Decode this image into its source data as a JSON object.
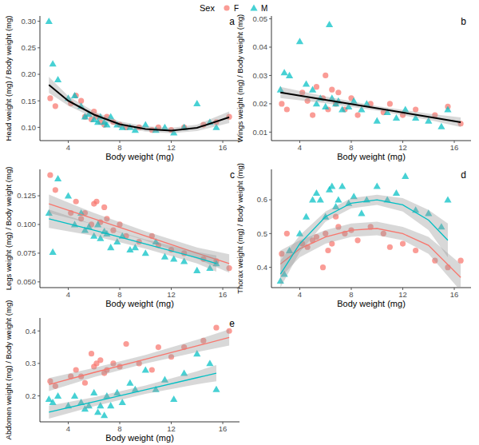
{
  "chart_data": [
    {
      "type": "scatter",
      "title": "a",
      "x_label": "Body weight (mg)",
      "y_label": "Head weight (mg) / Body weight (mg)",
      "legend": "top",
      "legend_title": "Sex",
      "xlim": [
        1.8,
        17.3
      ],
      "xticks": [
        4,
        8,
        12,
        16
      ],
      "ylim": [
        0.075,
        0.31
      ],
      "yticks": [
        {
          "value": 0.1,
          "label": "0.10"
        },
        {
          "value": 0.15,
          "label": "0.15"
        },
        {
          "value": 0.2,
          "label": "0.20"
        },
        {
          "value": 0.25,
          "label": "0.25"
        },
        {
          "value": 0.3,
          "label": "0.30"
        }
      ],
      "series": [
        {
          "name": "F",
          "color": "#F8766D",
          "marker": "circle",
          "x": [
            2.6,
            3.0,
            4.2,
            4.6,
            5.0,
            5.3,
            5.8,
            6.0,
            6.2,
            6.5,
            6.8,
            7.0,
            7.5,
            8.0,
            8.5,
            9.5,
            10.5,
            11.0,
            12.0,
            13.0,
            14.5,
            15.5,
            16.5
          ],
          "values": [
            0.155,
            0.14,
            0.145,
            0.16,
            0.15,
            0.12,
            0.115,
            0.13,
            0.12,
            0.11,
            0.105,
            0.12,
            0.11,
            0.105,
            0.1,
            0.1,
            0.095,
            0.1,
            0.095,
            0.1,
            0.105,
            0.11,
            0.12
          ]
        },
        {
          "name": "M",
          "color": "#00BFC4",
          "marker": "triangle",
          "x": [
            2.5,
            2.8,
            3.2,
            4.0,
            4.5,
            5.0,
            5.3,
            5.6,
            6.0,
            6.3,
            6.5,
            6.8,
            7.0,
            7.3,
            7.8,
            8.2,
            8.8,
            9.2,
            10.0,
            10.8,
            11.5,
            12.2,
            13.0,
            14.0,
            15.0,
            15.5
          ],
          "values": [
            0.3,
            0.22,
            0.19,
            0.155,
            0.16,
            0.14,
            0.12,
            0.125,
            0.115,
            0.11,
            0.12,
            0.11,
            0.105,
            0.12,
            0.105,
            0.1,
            0.1,
            0.095,
            0.105,
            0.095,
            0.1,
            0.09,
            0.1,
            0.145,
            0.11,
            0.1
          ]
        },
        {
          "type": "line",
          "color": "#000000",
          "line_style": "solid",
          "x": [
            2.5,
            4,
            6,
            8,
            10,
            12,
            14,
            16.5
          ],
          "values": [
            0.18,
            0.15,
            0.124,
            0.106,
            0.097,
            0.094,
            0.099,
            0.119
          ],
          "lower": [
            0.165,
            0.141,
            0.118,
            0.101,
            0.092,
            0.089,
            0.093,
            0.108
          ],
          "upper": [
            0.195,
            0.159,
            0.13,
            0.111,
            0.102,
            0.099,
            0.105,
            0.13
          ]
        }
      ]
    },
    {
      "type": "scatter",
      "title": "b",
      "x_label": "Body weight (mg)",
      "y_label": "Wings weight (mg) / Body weight (mg)",
      "xlim": [
        1.8,
        17.3
      ],
      "xticks": [
        4,
        8,
        12,
        16
      ],
      "ylim": [
        0.007,
        0.051
      ],
      "yticks": [
        0.01,
        0.02,
        0.03,
        0.04,
        0.05
      ],
      "series": [
        {
          "name": "F",
          "color": "#F8766D",
          "marker": "circle",
          "x": [
            2.6,
            3.0,
            4.2,
            4.6,
            5.0,
            5.3,
            5.8,
            6.0,
            6.2,
            6.5,
            6.8,
            7.0,
            7.5,
            8.0,
            8.5,
            9.5,
            10.5,
            11.0,
            12.0,
            13.0,
            14.5,
            15.5,
            16.5
          ],
          "values": [
            0.02,
            0.018,
            0.024,
            0.021,
            0.016,
            0.026,
            0.022,
            0.03,
            0.018,
            0.025,
            0.02,
            0.024,
            0.018,
            0.022,
            0.016,
            0.02,
            0.017,
            0.02,
            0.016,
            0.018,
            0.016,
            0.019,
            0.013
          ]
        },
        {
          "name": "M",
          "color": "#00BFC4",
          "marker": "triangle",
          "x": [
            2.5,
            2.8,
            3.2,
            4.0,
            4.5,
            5.0,
            5.3,
            5.6,
            6.0,
            6.3,
            6.5,
            6.8,
            7.0,
            7.3,
            7.8,
            8.2,
            8.8,
            9.2,
            10.0,
            10.8,
            11.5,
            12.2,
            13.0,
            14.0,
            15.0,
            15.5
          ],
          "values": [
            0.025,
            0.031,
            0.03,
            0.042,
            0.027,
            0.025,
            0.02,
            0.022,
            0.019,
            0.048,
            0.022,
            0.02,
            0.021,
            0.018,
            0.019,
            0.021,
            0.018,
            0.02,
            0.014,
            0.017,
            0.015,
            0.018,
            0.015,
            0.014,
            0.012,
            0.018
          ]
        },
        {
          "type": "line",
          "color": "#000000",
          "line_style": "solid",
          "x": [
            2.5,
            6,
            10,
            14,
            16.5
          ],
          "values": [
            0.024,
            0.0214,
            0.0184,
            0.0154,
            0.0135
          ],
          "lower": [
            0.022,
            0.0202,
            0.0176,
            0.0143,
            0.0118
          ],
          "upper": [
            0.026,
            0.0226,
            0.0192,
            0.0165,
            0.0152
          ]
        }
      ]
    },
    {
      "type": "scatter",
      "title": "c",
      "x_label": "Body weight (mg)",
      "y_label": "Legs weight (mg) / Body weight (mg)",
      "xlim": [
        1.8,
        17.3
      ],
      "xticks": [
        4,
        8,
        12,
        16
      ],
      "ylim": [
        0.045,
        0.148
      ],
      "yticks": [
        {
          "value": 0.05,
          "label": "0.050"
        },
        {
          "value": 0.075,
          "label": "0.075"
        },
        {
          "value": 0.1,
          "label": "0.100"
        },
        {
          "value": 0.125,
          "label": "0.125"
        }
      ],
      "series": [
        {
          "name": "F",
          "color": "#F8766D",
          "marker": "circle",
          "x": [
            2.6,
            3.0,
            4.2,
            4.6,
            5.0,
            5.3,
            5.8,
            6.0,
            6.2,
            6.5,
            6.8,
            7.0,
            7.5,
            8.0,
            8.5,
            9.5,
            10.5,
            11.0,
            12.0,
            13.0,
            14.5,
            15.5,
            16.5
          ],
          "values": [
            0.143,
            0.13,
            0.11,
            0.12,
            0.105,
            0.11,
            0.1,
            0.118,
            0.12,
            0.102,
            0.115,
            0.105,
            0.095,
            0.1,
            0.09,
            0.085,
            0.09,
            0.082,
            0.078,
            0.075,
            0.07,
            0.068,
            0.062
          ]
        },
        {
          "name": "M",
          "color": "#00BFC4",
          "marker": "triangle",
          "x": [
            2.5,
            2.8,
            3.2,
            4.0,
            4.5,
            5.0,
            5.3,
            5.6,
            6.0,
            6.3,
            6.5,
            6.8,
            7.0,
            7.3,
            7.8,
            8.2,
            8.8,
            9.2,
            10.0,
            10.8,
            11.5,
            12.2,
            13.0,
            14.0,
            15.0,
            15.5
          ],
          "values": [
            0.11,
            0.076,
            0.14,
            0.125,
            0.1,
            0.11,
            0.095,
            0.098,
            0.09,
            0.1,
            0.088,
            0.094,
            0.092,
            0.08,
            0.085,
            0.09,
            0.078,
            0.08,
            0.075,
            0.085,
            0.072,
            0.07,
            0.068,
            0.06,
            0.062,
            0.066
          ]
        },
        {
          "type": "line",
          "color": "#F8766D",
          "line_style": "solid",
          "x": [
            2.5,
            6,
            10,
            14,
            16.5
          ],
          "values": [
            0.118,
            0.105,
            0.09,
            0.075,
            0.066
          ],
          "lower": [
            0.11,
            0.1,
            0.086,
            0.07,
            0.058
          ],
          "upper": [
            0.126,
            0.11,
            0.094,
            0.08,
            0.074
          ]
        },
        {
          "type": "line",
          "color": "#00BFC4",
          "line_style": "solid",
          "x": [
            2.5,
            6,
            10,
            14,
            15.5
          ],
          "values": [
            0.105,
            0.095,
            0.083,
            0.071,
            0.066
          ],
          "lower": [
            0.097,
            0.09,
            0.079,
            0.066,
            0.059
          ],
          "upper": [
            0.113,
            0.1,
            0.087,
            0.076,
            0.073
          ]
        }
      ]
    },
    {
      "type": "scatter",
      "title": "d",
      "x_label": "Body weight (mg)",
      "y_label": "Thorax weight (mg) / Body weight (mg)",
      "xlim": [
        1.8,
        17.3
      ],
      "xticks": [
        4,
        8,
        12,
        16
      ],
      "ylim": [
        0.34,
        0.69
      ],
      "yticks": [
        0.4,
        0.5,
        0.6
      ],
      "series": [
        {
          "name": "F",
          "color": "#F8766D",
          "marker": "circle",
          "x": [
            2.6,
            3.0,
            4.2,
            4.6,
            5.0,
            5.3,
            5.8,
            6.0,
            6.2,
            6.5,
            6.8,
            7.0,
            7.5,
            8.0,
            8.5,
            9.5,
            10.5,
            11.0,
            12.0,
            13.0,
            14.5,
            15.5,
            16.5
          ],
          "values": [
            0.44,
            0.5,
            0.47,
            0.46,
            0.48,
            0.49,
            0.4,
            0.5,
            0.45,
            0.47,
            0.55,
            0.52,
            0.5,
            0.51,
            0.48,
            0.52,
            0.5,
            0.46,
            0.47,
            0.45,
            0.42,
            0.4,
            0.42
          ]
        },
        {
          "name": "M",
          "color": "#00BFC4",
          "marker": "triangle",
          "x": [
            2.5,
            2.8,
            3.2,
            4.0,
            4.5,
            5.0,
            5.3,
            5.6,
            6.0,
            6.3,
            6.5,
            6.8,
            7.0,
            7.3,
            7.8,
            8.2,
            8.8,
            9.2,
            10.0,
            10.8,
            11.5,
            12.2,
            13.0,
            14.0,
            15.0,
            15.5
          ],
          "values": [
            0.36,
            0.38,
            0.45,
            0.5,
            0.55,
            0.6,
            0.62,
            0.6,
            0.55,
            0.63,
            0.64,
            0.58,
            0.6,
            0.64,
            0.59,
            0.61,
            0.56,
            0.6,
            0.64,
            0.6,
            0.62,
            0.67,
            0.57,
            0.56,
            0.52,
            0.6
          ]
        },
        {
          "type": "line",
          "color": "#F8766D",
          "line_style": "solid",
          "x": [
            2.5,
            4,
            6,
            8,
            10,
            12,
            14,
            16.5
          ],
          "values": [
            0.41,
            0.455,
            0.49,
            0.51,
            0.515,
            0.5,
            0.465,
            0.37
          ],
          "lower": [
            0.37,
            0.43,
            0.47,
            0.49,
            0.495,
            0.48,
            0.44,
            0.33
          ],
          "upper": [
            0.45,
            0.48,
            0.51,
            0.53,
            0.535,
            0.52,
            0.49,
            0.41
          ]
        },
        {
          "type": "line",
          "color": "#00BFC4",
          "line_style": "solid",
          "x": [
            2.5,
            4,
            6,
            8,
            10,
            12,
            14,
            15.5
          ],
          "values": [
            0.38,
            0.47,
            0.55,
            0.59,
            0.6,
            0.585,
            0.54,
            0.48
          ],
          "lower": [
            0.34,
            0.445,
            0.535,
            0.575,
            0.585,
            0.565,
            0.51,
            0.43
          ],
          "upper": [
            0.42,
            0.495,
            0.565,
            0.605,
            0.615,
            0.605,
            0.57,
            0.53
          ]
        }
      ]
    },
    {
      "type": "scatter",
      "title": "e",
      "x_label": "Body weight (mg)",
      "y_label": "Abdomen weight (mg) / Body weight (mg)",
      "xlim": [
        1.8,
        17.3
      ],
      "xticks": [
        4,
        8,
        12,
        16
      ],
      "ylim": [
        0.12,
        0.44
      ],
      "yticks": [
        0.2,
        0.3,
        0.4
      ],
      "series": [
        {
          "name": "F",
          "color": "#F8766D",
          "marker": "circle",
          "x": [
            2.6,
            3.0,
            4.2,
            4.6,
            5.0,
            5.3,
            5.8,
            6.0,
            6.2,
            6.5,
            6.8,
            7.0,
            7.5,
            8.0,
            8.5,
            9.5,
            10.5,
            11.0,
            12.0,
            13.0,
            14.5,
            15.5,
            16.5
          ],
          "values": [
            0.245,
            0.23,
            0.26,
            0.28,
            0.26,
            0.24,
            0.33,
            0.29,
            0.3,
            0.31,
            0.27,
            0.28,
            0.3,
            0.29,
            0.36,
            0.3,
            0.28,
            0.35,
            0.32,
            0.35,
            0.37,
            0.41,
            0.4
          ]
        },
        {
          "name": "M",
          "color": "#00BFC4",
          "marker": "triangle",
          "x": [
            2.5,
            2.8,
            3.2,
            4.0,
            4.5,
            5.0,
            5.3,
            5.6,
            6.0,
            6.3,
            6.5,
            6.8,
            7.0,
            7.3,
            7.8,
            8.2,
            8.8,
            9.2,
            10.0,
            10.8,
            11.5,
            12.2,
            13.0,
            14.0,
            15.0,
            15.5
          ],
          "values": [
            0.19,
            0.18,
            0.2,
            0.17,
            0.2,
            0.18,
            0.16,
            0.17,
            0.21,
            0.15,
            0.17,
            0.14,
            0.2,
            0.17,
            0.21,
            0.18,
            0.24,
            0.22,
            0.28,
            0.22,
            0.25,
            0.19,
            0.27,
            0.33,
            0.3,
            0.22
          ]
        },
        {
          "type": "line",
          "color": "#F8766D",
          "line_style": "solid",
          "x": [
            2.5,
            6,
            10,
            14,
            16.5
          ],
          "values": [
            0.235,
            0.272,
            0.313,
            0.354,
            0.38
          ],
          "lower": [
            0.215,
            0.258,
            0.3,
            0.335,
            0.355
          ],
          "upper": [
            0.255,
            0.286,
            0.326,
            0.373,
            0.405
          ]
        },
        {
          "type": "line",
          "color": "#00BFC4",
          "line_style": "solid",
          "x": [
            2.5,
            6,
            10,
            14,
            15.5
          ],
          "values": [
            0.15,
            0.182,
            0.219,
            0.256,
            0.27
          ],
          "lower": [
            0.13,
            0.168,
            0.206,
            0.236,
            0.245
          ],
          "upper": [
            0.17,
            0.196,
            0.232,
            0.276,
            0.295
          ]
        }
      ]
    }
  ]
}
